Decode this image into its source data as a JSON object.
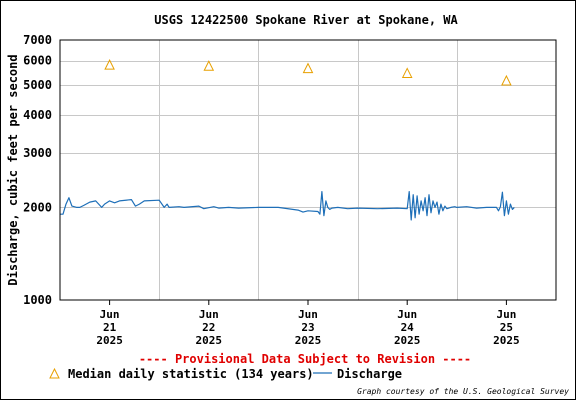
{
  "chart_data": {
    "type": "line",
    "title": "USGS 12422500 Spokane River at Spokane, WA",
    "ylabel": "Discharge, cubic feet per second",
    "xlabel": "",
    "y_scale": "log",
    "ylim": [
      1000,
      7000
    ],
    "y_ticks": [
      1000,
      2000,
      3000,
      4000,
      5000,
      6000,
      7000
    ],
    "y_tick_labels": [
      "1000",
      "2000",
      "3000",
      "4000",
      "5000",
      "6000",
      "7000"
    ],
    "x_range_days": [
      0,
      5
    ],
    "x_ticks": [
      {
        "day": 0.5,
        "label": [
          "Jun",
          "21",
          "2025"
        ]
      },
      {
        "day": 1.5,
        "label": [
          "Jun",
          "22",
          "2025"
        ]
      },
      {
        "day": 2.5,
        "label": [
          "Jun",
          "23",
          "2025"
        ]
      },
      {
        "day": 3.5,
        "label": [
          "Jun",
          "24",
          "2025"
        ]
      },
      {
        "day": 4.5,
        "label": [
          "Jun",
          "25",
          "2025"
        ]
      }
    ],
    "grid": true,
    "series": [
      {
        "name": "Median daily statistic (134 years)",
        "type": "scatter",
        "marker": "triangle",
        "color": "#e8a000",
        "x": [
          0.5,
          1.5,
          2.5,
          3.5,
          4.5
        ],
        "y": [
          5800,
          5750,
          5650,
          5450,
          5150
        ]
      },
      {
        "name": "Discharge",
        "type": "line",
        "color": "#1e6fb8",
        "x": [
          0.0,
          0.03,
          0.06,
          0.09,
          0.12,
          0.17,
          0.2,
          0.24,
          0.3,
          0.36,
          0.42,
          0.45,
          0.5,
          0.55,
          0.6,
          0.72,
          0.76,
          0.8,
          0.85,
          1.0,
          1.05,
          1.08,
          1.1,
          1.2,
          1.25,
          1.4,
          1.45,
          1.55,
          1.6,
          1.7,
          1.8,
          2.0,
          2.2,
          2.4,
          2.45,
          2.5,
          2.6,
          2.62,
          2.64,
          2.66,
          2.68,
          2.7,
          2.72,
          2.74,
          2.8,
          2.9,
          3.0,
          3.2,
          3.4,
          3.5,
          3.52,
          3.54,
          3.56,
          3.58,
          3.6,
          3.62,
          3.64,
          3.66,
          3.68,
          3.7,
          3.72,
          3.74,
          3.76,
          3.78,
          3.8,
          3.82,
          3.84,
          3.86,
          3.88,
          3.9,
          3.94,
          3.98,
          4.0,
          4.1,
          4.2,
          4.3,
          4.4,
          4.42,
          4.44,
          4.46,
          4.48,
          4.5,
          4.52,
          4.54,
          4.56,
          4.58
        ],
        "y": [
          1900,
          1900,
          2050,
          2150,
          2020,
          2000,
          2000,
          2030,
          2080,
          2100,
          2000,
          2050,
          2100,
          2070,
          2100,
          2120,
          2020,
          2050,
          2100,
          2110,
          2000,
          2050,
          2000,
          2010,
          2000,
          2020,
          1980,
          2010,
          1990,
          2000,
          1990,
          2000,
          2000,
          1960,
          1930,
          1950,
          1940,
          1900,
          2250,
          1880,
          2100,
          2000,
          1970,
          1990,
          2000,
          1980,
          1990,
          1980,
          1990,
          1980,
          2250,
          1820,
          2200,
          1850,
          2180,
          1900,
          2100,
          1950,
          2150,
          1880,
          2200,
          1920,
          2100,
          2000,
          2080,
          1900,
          2050,
          1950,
          2020,
          1980,
          2000,
          2010,
          2000,
          2010,
          1990,
          2000,
          2000,
          1950,
          2010,
          2240,
          1880,
          2100,
          1900,
          2050,
          1970,
          2000
        ]
      }
    ],
    "legend_position": "bottom-left",
    "annotations": [
      "---- Provisional Data Subject to Revision ----"
    ],
    "credit": "Graph courtesy of the U.S. Geological Survey"
  }
}
